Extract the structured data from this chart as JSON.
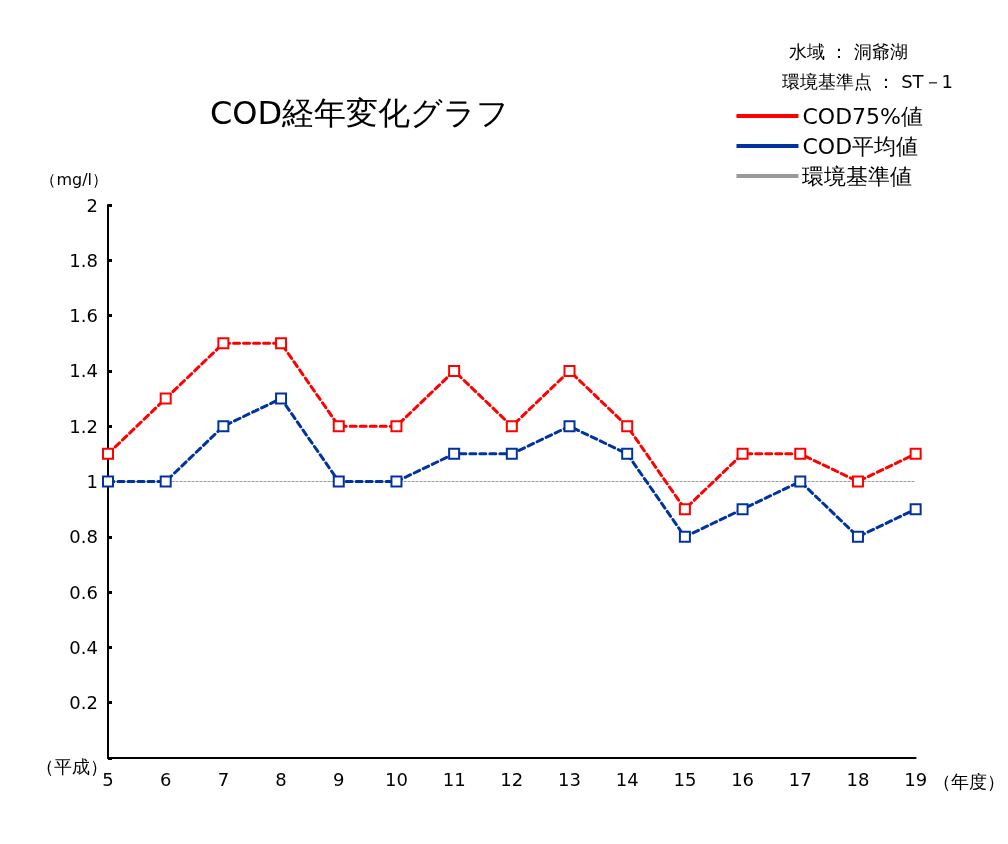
{
  "chart_data": {
    "type": "line",
    "title": "COD経年変化グラフ",
    "ylabel": "（mg/l）",
    "xlabel": "（年度）",
    "annotations": [
      "水域 ： 洞爺湖",
      "環境基準点 ： ST－1",
      "（平成）"
    ],
    "categories": [
      "5",
      "6",
      "7",
      "8",
      "9",
      "10",
      "11",
      "12",
      "13",
      "14",
      "15",
      "16",
      "17",
      "18",
      "19"
    ],
    "series": [
      {
        "name": "COD75%値",
        "color": "#ff0000",
        "values": [
          1.1,
          1.3,
          1.5,
          1.5,
          1.2,
          1.2,
          1.4,
          1.2,
          1.4,
          1.2,
          0.9,
          1.1,
          1.1,
          1.0,
          1.1
        ]
      },
      {
        "name": "COD平均値",
        "color": "#0033a0",
        "values": [
          1.0,
          1.0,
          1.2,
          1.3,
          1.0,
          1.0,
          1.1,
          1.1,
          1.2,
          1.1,
          0.8,
          0.9,
          1.0,
          0.8,
          0.9
        ]
      },
      {
        "name": "環境基準値",
        "color": "#999999",
        "marker": "none",
        "line_style": "dotted",
        "values": [
          1,
          1,
          1,
          1,
          1,
          1,
          1,
          1,
          1,
          1,
          1,
          1,
          1,
          1,
          1
        ]
      }
    ],
    "ylim": [
      0,
      2
    ],
    "yticks": [
      {
        "value": 0,
        "label": null
      },
      0.2,
      0.4,
      0.6,
      0.8,
      1,
      1.2,
      1.4,
      1.6,
      1.8,
      2
    ],
    "grid": false,
    "legend": "top right",
    "marker": "square",
    "line_style": "dashed"
  }
}
